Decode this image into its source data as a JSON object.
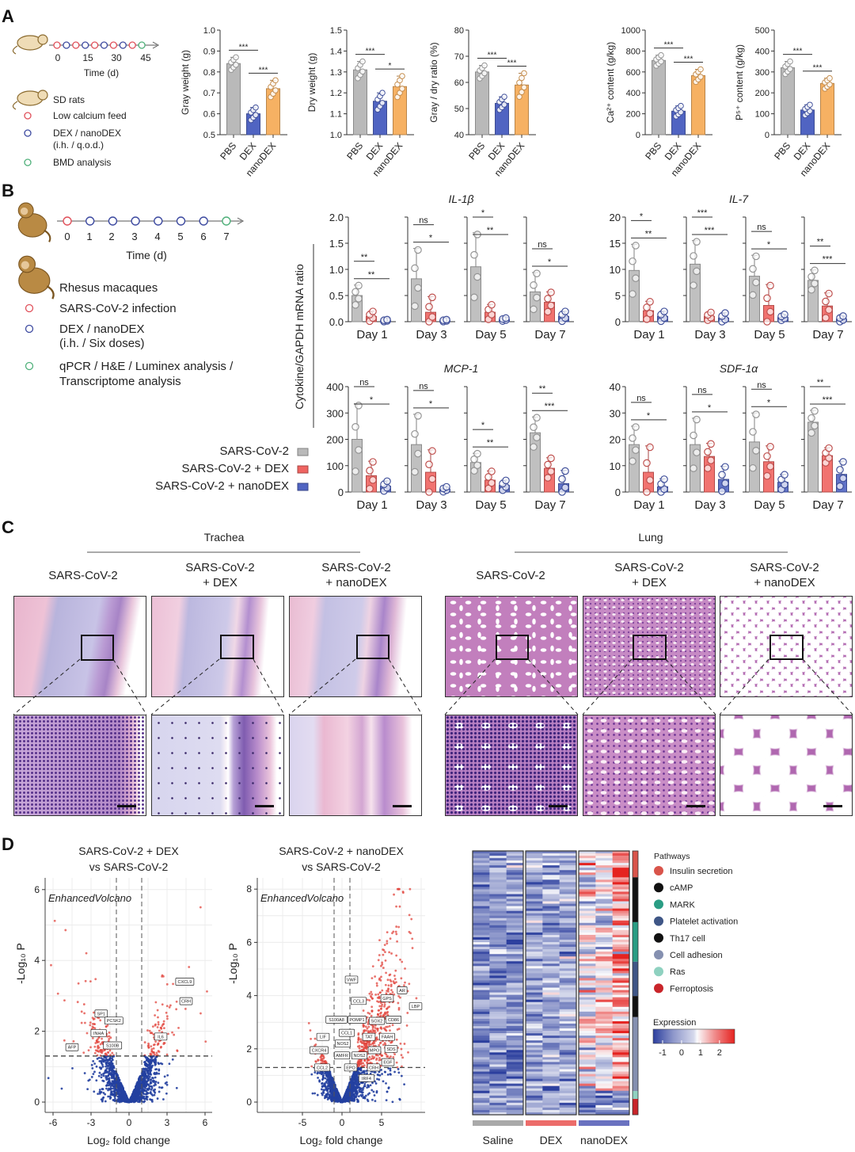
{
  "panel_labels": {
    "a": "A",
    "b": "B",
    "c": "C",
    "d": "D"
  },
  "colors": {
    "grey": "#b9b9b9",
    "blue": "#5064c2",
    "orange": "#f6b163",
    "red": "#ef6461",
    "timeline_red": "#e0505a",
    "timeline_blue": "#3d4aa0",
    "timeline_green": "#4fb07a"
  },
  "panel_a": {
    "timeline": {
      "ticks": [
        "0",
        "15",
        "30",
        "45"
      ],
      "xlabel": "Time (d)"
    },
    "legend": {
      "subject": "SD rats",
      "feed": "Low calcium feed",
      "treatment": "DEX / nanoDEX",
      "treatment_detail": "(i.h. / q.o.d.)",
      "analysis": "BMD analysis"
    }
  },
  "panel_b": {
    "timeline": {
      "ticks": [
        "0",
        "1",
        "2",
        "3",
        "4",
        "5",
        "6",
        "7"
      ],
      "xlabel": "Time (d)"
    },
    "legend": {
      "subject": "Rhesus macaques",
      "infection": "SARS-CoV-2 infection",
      "treatment": "DEX / nanoDEX",
      "treatment_detail": "(i.h. / Six doses)",
      "analysis_1": "qPCR / H&E / Luminex analysis /",
      "analysis_2": "Transcriptome analysis"
    },
    "ylabel": "Cytokine/GAPDH mRNA ratio",
    "group_legend": [
      "SARS-CoV-2",
      "SARS-CoV-2 + DEX",
      "SARS-CoV-2 + nanoDEX"
    ]
  },
  "panel_c": {
    "tissues": [
      "Trachea",
      "Lung"
    ],
    "columns": [
      {
        "line1": "SARS-CoV-2",
        "line2": ""
      },
      {
        "line1": "SARS-CoV-2",
        "line2": "+ DEX"
      },
      {
        "line1": "SARS-CoV-2",
        "line2": "+ nanoDEX"
      },
      {
        "line1": "SARS-CoV-2",
        "line2": ""
      },
      {
        "line1": "SARS-CoV-2",
        "line2": "+ DEX"
      },
      {
        "line1": "SARS-CoV-2",
        "line2": "+ nanoDEX"
      }
    ]
  },
  "chart_data": [
    {
      "id": "a1",
      "type": "bar",
      "ylabel": "Gray weight (g)",
      "ylim": [
        0.5,
        1.0
      ],
      "yticks": [
        "0.5",
        "0.6",
        "0.7",
        "0.8",
        "0.9",
        "1.0"
      ],
      "categories": [
        "PBS",
        "DEX",
        "nanoDEX"
      ],
      "values": [
        0.84,
        0.6,
        0.72
      ],
      "sd": [
        0.03,
        0.03,
        0.04
      ],
      "significance": [
        "***",
        "***"
      ]
    },
    {
      "id": "a2",
      "type": "bar",
      "ylabel": "Dry weight (g)",
      "ylim": [
        1.0,
        1.5
      ],
      "yticks": [
        "1.0",
        "1.1",
        "1.2",
        "1.3",
        "1.4",
        "1.5"
      ],
      "categories": [
        "PBS",
        "DEX",
        "nanoDEX"
      ],
      "values": [
        1.31,
        1.16,
        1.23
      ],
      "sd": [
        0.04,
        0.04,
        0.05
      ],
      "significance": [
        "***",
        "*"
      ]
    },
    {
      "id": "a3",
      "type": "bar",
      "ylabel": "Gray / dry ratio (%)",
      "ylim": [
        40,
        80
      ],
      "yticks": [
        "40",
        "50",
        "60",
        "70",
        "80"
      ],
      "categories": [
        "PBS",
        "DEX",
        "nanoDEX"
      ],
      "values": [
        64,
        52,
        59
      ],
      "sd": [
        2.5,
        2.5,
        4.5
      ],
      "significance": [
        "***",
        "***"
      ]
    },
    {
      "id": "a4",
      "type": "bar",
      "ylabel": "Ca²⁺ content (g/kg)",
      "ylim": [
        0,
        1000
      ],
      "yticks": [
        "0",
        "200",
        "400",
        "600",
        "800",
        "1000"
      ],
      "categories": [
        "PBS",
        "DEX",
        "nanoDEX"
      ],
      "values": [
        710,
        225,
        565
      ],
      "sd": [
        50,
        50,
        60
      ],
      "significance": [
        "***",
        "***"
      ]
    },
    {
      "id": "a5",
      "type": "bar",
      "ylabel": "P⁵⁺ content (g/kg)",
      "ylim": [
        0,
        500
      ],
      "yticks": [
        "0",
        "100",
        "200",
        "300",
        "400",
        "500"
      ],
      "categories": [
        "PBS",
        "DEX",
        "nanoDEX"
      ],
      "values": [
        320,
        118,
        245
      ],
      "sd": [
        30,
        25,
        25
      ],
      "significance": [
        "***",
        "***"
      ]
    },
    {
      "id": "il1b",
      "type": "bar",
      "title": "IL-1β",
      "ylim": [
        0,
        2.0
      ],
      "yticks": [
        "0.0",
        "0.5",
        "1.0",
        "1.5",
        "2.0"
      ],
      "groups": [
        "Day 1",
        "Day 3",
        "Day 5",
        "Day 7"
      ],
      "series": [
        {
          "name": "SARS-CoV-2",
          "values": [
            0.5,
            0.82,
            1.05,
            0.57
          ],
          "sd": [
            0.2,
            0.58,
            0.65,
            0.37
          ]
        },
        {
          "name": "SARS-CoV-2 + DEX",
          "values": [
            0.1,
            0.18,
            0.18,
            0.37
          ],
          "sd": [
            0.1,
            0.3,
            0.15,
            0.2
          ]
        },
        {
          "name": "SARS-CoV-2 + nanoDEX",
          "values": [
            0.02,
            0.02,
            0.04,
            0.1
          ],
          "sd": [
            0.02,
            0.02,
            0.03,
            0.1
          ]
        }
      ],
      "significance": [
        [
          "**",
          "**"
        ],
        [
          "ns",
          "*"
        ],
        [
          "*",
          "**"
        ],
        [
          "ns",
          "*"
        ]
      ]
    },
    {
      "id": "il7",
      "type": "bar",
      "title": "IL-7",
      "ylim": [
        0,
        20
      ],
      "yticks": [
        "0",
        "5",
        "10",
        "15",
        "20"
      ],
      "groups": [
        "Day 1",
        "Day 3",
        "Day 5",
        "Day 7"
      ],
      "series": [
        {
          "name": "SARS-CoV-2",
          "values": [
            9.8,
            11.0,
            8.7,
            7.9
          ],
          "sd": [
            5,
            4.5,
            4,
            2
          ]
        },
        {
          "name": "SARS-CoV-2 + DEX",
          "values": [
            2.1,
            1.0,
            3.1,
            3.0
          ],
          "sd": [
            1.8,
            0.8,
            4,
            2.5
          ]
        },
        {
          "name": "SARS-CoV-2 + nanoDEX",
          "values": [
            1.0,
            0.7,
            0.8,
            0.5
          ],
          "sd": [
            1,
            1,
            0.6,
            0.6
          ]
        }
      ],
      "significance": [
        [
          "*",
          "**"
        ],
        [
          "***",
          "***"
        ],
        [
          "ns",
          "*"
        ],
        [
          "**",
          "***"
        ]
      ]
    },
    {
      "id": "mcp1",
      "type": "bar",
      "title": "MCP-1",
      "ylim": [
        0,
        400
      ],
      "yticks": [
        "0",
        "100",
        "200",
        "300",
        "400"
      ],
      "groups": [
        "Day 1",
        "Day 3",
        "Day 5",
        "Day 7"
      ],
      "series": [
        {
          "name": "SARS-CoV-2",
          "values": [
            200,
            180,
            112,
            225
          ],
          "sd": [
            135,
            115,
            35,
            60
          ]
        },
        {
          "name": "SARS-CoV-2 + DEX",
          "values": [
            62,
            75,
            45,
            90
          ],
          "sd": [
            55,
            85,
            35,
            40
          ]
        },
        {
          "name": "SARS-CoV-2 + nanoDEX",
          "values": [
            22,
            10,
            25,
            32
          ],
          "sd": [
            20,
            10,
            20,
            50
          ]
        }
      ],
      "significance": [
        [
          "ns",
          "*"
        ],
        [
          "ns",
          "*"
        ],
        [
          "*",
          "**"
        ],
        [
          "**",
          "***"
        ]
      ]
    },
    {
      "id": "sdf1a",
      "type": "bar",
      "title": "SDF-1α",
      "ylim": [
        0,
        40
      ],
      "yticks": [
        "0",
        "10",
        "20",
        "30",
        "40"
      ],
      "groups": [
        "Day 1",
        "Day 3",
        "Day 5",
        "Day 7"
      ],
      "series": [
        {
          "name": "SARS-CoV-2",
          "values": [
            18,
            18,
            19,
            26.5
          ],
          "sd": [
            7,
            10,
            11,
            4.5
          ]
        },
        {
          "name": "SARS-CoV-2 + DEX",
          "values": [
            7.5,
            13.5,
            11.5,
            13.8
          ],
          "sd": [
            10,
            5,
            6,
            3
          ]
        },
        {
          "name": "SARS-CoV-2 + nanoDEX",
          "values": [
            2,
            4.8,
            3.7,
            6.7
          ],
          "sd": [
            3,
            5,
            3,
            5
          ]
        }
      ],
      "significance": [
        [
          "ns",
          "*"
        ],
        [
          "ns",
          "*"
        ],
        [
          "ns",
          "*"
        ],
        [
          "**",
          "***"
        ]
      ]
    },
    {
      "id": "volcano1",
      "type": "scatter",
      "title": "SARS-CoV-2 + DEX",
      "subtitle": "vs SARS-CoV-2",
      "annotation": "EnhancedVolcano",
      "xlabel": "Log₂ fold change",
      "ylabel": "-Log₁₀ P",
      "xlim": [
        -6.6,
        6.6
      ],
      "ylim": [
        0,
        6.3
      ],
      "xticks": [
        "-6",
        "-3",
        "0",
        "3",
        "6"
      ],
      "yticks": [
        "0",
        "2",
        "4",
        "6"
      ],
      "fc_cutoff": 1,
      "p_cutoff": 1.3,
      "labeled_genes": [
        {
          "gene": "CXCL9",
          "x": 4.4,
          "y": 3.4
        },
        {
          "gene": "CRH",
          "x": 4.5,
          "y": 2.85
        },
        {
          "gene": "SP1",
          "x": -2.2,
          "y": 2.5
        },
        {
          "gene": "PCSK2",
          "x": -1.2,
          "y": 2.3
        },
        {
          "gene": "INHA",
          "x": -2.4,
          "y": 1.95
        },
        {
          "gene": "S100B",
          "x": -1.3,
          "y": 1.6
        },
        {
          "gene": "AFP",
          "x": -4.5,
          "y": 1.55
        },
        {
          "gene": "IL6",
          "x": 2.5,
          "y": 1.85
        }
      ]
    },
    {
      "id": "volcano2",
      "type": "scatter",
      "title": "SARS-CoV-2 + nanoDEX",
      "subtitle": "vs SARS-CoV-2",
      "annotation": "EnhancedVolcano",
      "xlabel": "Log₂ fold change",
      "ylabel": "-Log₁₀ P",
      "xlim": [
        -10,
        10
      ],
      "ylim": [
        0,
        8.4
      ],
      "xticks": [
        "-5",
        "0",
        "5"
      ],
      "yticks": [
        "0",
        "2",
        "4",
        "6",
        "8"
      ],
      "fc_cutoff": 1,
      "p_cutoff": 1.3,
      "labeled_genes": [
        {
          "gene": "VWF",
          "x": 1.2,
          "y": 4.6
        },
        {
          "gene": "CCL3",
          "x": 2.1,
          "y": 3.8
        },
        {
          "gene": "GPS",
          "x": 5.7,
          "y": 3.9
        },
        {
          "gene": "AR",
          "x": 7.6,
          "y": 4.2
        },
        {
          "gene": "LBP",
          "x": 9.3,
          "y": 3.6
        },
        {
          "gene": "S100A8",
          "x": -0.7,
          "y": 3.1
        },
        {
          "gene": "POMP1",
          "x": 1.9,
          "y": 3.1
        },
        {
          "gene": "SOX2",
          "x": 4.4,
          "y": 3.05
        },
        {
          "gene": "CD86",
          "x": 6.5,
          "y": 3.1
        },
        {
          "gene": "CCL1",
          "x": 0.6,
          "y": 2.6
        },
        {
          "gene": "TAT",
          "x": 3.4,
          "y": 2.45
        },
        {
          "gene": "FAAH",
          "x": 5.7,
          "y": 2.45
        },
        {
          "gene": "LIF",
          "x": -2.4,
          "y": 2.45
        },
        {
          "gene": "NOS2",
          "x": 0.1,
          "y": 2.2
        },
        {
          "gene": "AMFR",
          "x": 0.0,
          "y": 1.75
        },
        {
          "gene": "NOS2",
          "x": 2.2,
          "y": 1.75
        },
        {
          "gene": "MPO",
          "x": 4.1,
          "y": 1.95
        },
        {
          "gene": "SDS",
          "x": 6.2,
          "y": 2.0
        },
        {
          "gene": "CXCR4",
          "x": -2.9,
          "y": 1.95
        },
        {
          "gene": "CCL2",
          "x": -2.5,
          "y": 1.3
        },
        {
          "gene": "EPO",
          "x": 1.1,
          "y": 1.3
        },
        {
          "gene": "CRH",
          "x": 4.0,
          "y": 1.3
        },
        {
          "gene": "EGF",
          "x": 5.8,
          "y": 1.5
        },
        {
          "gene": "IRF4",
          "x": 3.1,
          "y": 0.9
        }
      ]
    },
    {
      "id": "heatmap",
      "type": "heatmap",
      "groups": [
        "Saline",
        "DEX",
        "nanoDEX"
      ],
      "group_colors": [
        "#a9a9a9",
        "#ec6c6a",
        "#6a72c0"
      ],
      "pathways_title": "Pathways",
      "pathways": [
        {
          "name": "Insulin secretion",
          "color": "#d9544a",
          "start": 0.0,
          "end": 0.1
        },
        {
          "name": "cAMP",
          "color": "#111111",
          "start": 0.1,
          "end": 0.27
        },
        {
          "name": "MARK",
          "color": "#2a9d84",
          "start": 0.27,
          "end": 0.42
        },
        {
          "name": "Platelet activation",
          "color": "#3f5686",
          "start": 0.42,
          "end": 0.55
        },
        {
          "name": "Th17 cell",
          "color": "#111111",
          "start": 0.55,
          "end": 0.63
        },
        {
          "name": "Cell adhesion",
          "color": "#8590b0",
          "start": 0.63,
          "end": 0.91
        },
        {
          "name": "Ras",
          "color": "#8fd1c0",
          "start": 0.91,
          "end": 0.94
        },
        {
          "name": "Ferroptosis",
          "color": "#c9252a",
          "start": 0.94,
          "end": 1.0
        }
      ],
      "scale_title": "Expression",
      "scale_ticks": [
        "-1",
        "0",
        "1",
        "2"
      ],
      "scale_range": [
        -1.5,
        2.8
      ]
    }
  ]
}
